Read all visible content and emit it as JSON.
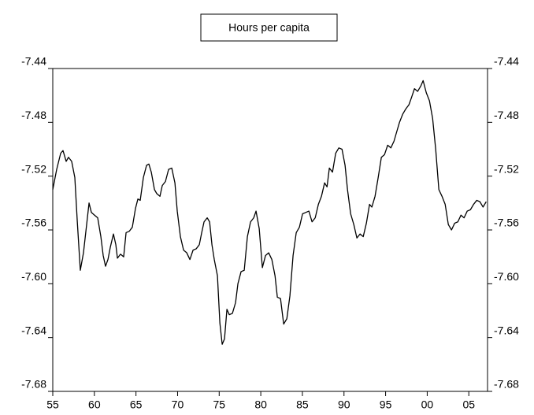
{
  "chart_data": {
    "type": "line",
    "title": "Hours per capita",
    "x": [
      1955.0,
      1955.47,
      1955.95,
      1956.23,
      1956.61,
      1956.89,
      1957.27,
      1957.65,
      1957.94,
      1958.31,
      1958.69,
      1959.07,
      1959.36,
      1959.64,
      1960.02,
      1960.4,
      1960.78,
      1961.06,
      1961.34,
      1961.63,
      1961.91,
      1962.29,
      1962.58,
      1962.77,
      1963.14,
      1963.52,
      1963.81,
      1964.19,
      1964.56,
      1964.94,
      1965.23,
      1965.51,
      1965.89,
      1966.27,
      1966.55,
      1966.84,
      1967.22,
      1967.5,
      1967.88,
      1968.16,
      1968.54,
      1968.92,
      1969.3,
      1969.68,
      1969.96,
      1970.34,
      1970.72,
      1971.1,
      1971.48,
      1971.86,
      1972.24,
      1972.61,
      1972.9,
      1973.18,
      1973.56,
      1973.85,
      1974.13,
      1974.41,
      1974.79,
      1975.08,
      1975.36,
      1975.64,
      1975.93,
      1976.21,
      1976.59,
      1976.97,
      1977.25,
      1977.63,
      1978.01,
      1978.39,
      1978.77,
      1979.15,
      1979.43,
      1979.81,
      1980.19,
      1980.57,
      1980.95,
      1981.33,
      1981.71,
      1981.99,
      1982.37,
      1982.75,
      1983.13,
      1983.5,
      1983.88,
      1984.26,
      1984.64,
      1985.02,
      1985.4,
      1985.78,
      1986.16,
      1986.54,
      1986.92,
      1987.29,
      1987.67,
      1987.96,
      1988.24,
      1988.62,
      1989.0,
      1989.38,
      1989.76,
      1990.13,
      1990.42,
      1990.8,
      1991.18,
      1991.55,
      1991.93,
      1992.31,
      1992.69,
      1993.07,
      1993.35,
      1993.73,
      1994.11,
      1994.49,
      1994.87,
      1995.25,
      1995.63,
      1996.01,
      1996.29,
      1996.67,
      1997.05,
      1997.43,
      1997.8,
      1998.09,
      1998.47,
      1998.85,
      1999.23,
      1999.51,
      1999.89,
      2000.27,
      2000.65,
      2001.02,
      2001.4,
      2001.78,
      2002.16,
      2002.54,
      2002.92,
      2003.3,
      2003.68,
      2004.06,
      2004.43,
      2004.81,
      2005.19,
      2005.57,
      2005.95,
      2006.33,
      2006.71,
      2007.09
    ],
    "series": [
      {
        "name": "Hours per capita",
        "color": "#000000",
        "values": [
          -7.53,
          -7.515,
          -7.503,
          -7.501,
          -7.509,
          -7.506,
          -7.509,
          -7.521,
          -7.553,
          -7.59,
          -7.577,
          -7.556,
          -7.54,
          -7.547,
          -7.549,
          -7.551,
          -7.565,
          -7.579,
          -7.587,
          -7.582,
          -7.573,
          -7.563,
          -7.571,
          -7.581,
          -7.578,
          -7.58,
          -7.562,
          -7.561,
          -7.558,
          -7.544,
          -7.537,
          -7.538,
          -7.521,
          -7.512,
          -7.511,
          -7.517,
          -7.53,
          -7.533,
          -7.535,
          -7.527,
          -7.524,
          -7.515,
          -7.514,
          -7.525,
          -7.546,
          -7.565,
          -7.575,
          -7.577,
          -7.582,
          -7.575,
          -7.574,
          -7.571,
          -7.562,
          -7.554,
          -7.551,
          -7.554,
          -7.571,
          -7.582,
          -7.594,
          -7.629,
          -7.645,
          -7.641,
          -7.619,
          -7.623,
          -7.622,
          -7.614,
          -7.6,
          -7.591,
          -7.59,
          -7.565,
          -7.554,
          -7.551,
          -7.546,
          -7.559,
          -7.588,
          -7.579,
          -7.577,
          -7.582,
          -7.594,
          -7.61,
          -7.611,
          -7.63,
          -7.626,
          -7.609,
          -7.579,
          -7.562,
          -7.558,
          -7.548,
          -7.547,
          -7.546,
          -7.554,
          -7.551,
          -7.541,
          -7.535,
          -7.525,
          -7.528,
          -7.514,
          -7.517,
          -7.503,
          -7.499,
          -7.5,
          -7.512,
          -7.53,
          -7.548,
          -7.556,
          -7.566,
          -7.563,
          -7.565,
          -7.555,
          -7.541,
          -7.543,
          -7.535,
          -7.521,
          -7.506,
          -7.504,
          -7.497,
          -7.499,
          -7.494,
          -7.488,
          -7.48,
          -7.474,
          -7.47,
          -7.467,
          -7.462,
          -7.455,
          -7.457,
          -7.453,
          -7.449,
          -7.458,
          -7.464,
          -7.477,
          -7.5,
          -7.53,
          -7.535,
          -7.541,
          -7.556,
          -7.56,
          -7.555,
          -7.554,
          -7.549,
          -7.551,
          -7.546,
          -7.545,
          -7.541,
          -7.538,
          -7.539,
          -7.543,
          -7.539
        ]
      }
    ],
    "xlim": [
      1955,
      2007.25
    ],
    "xticks": [
      {
        "value": 1955,
        "label": "55"
      },
      {
        "value": 1960,
        "label": "60"
      },
      {
        "value": 1965,
        "label": "65"
      },
      {
        "value": 1970,
        "label": "70"
      },
      {
        "value": 1975,
        "label": "75"
      },
      {
        "value": 1980,
        "label": "80"
      },
      {
        "value": 1985,
        "label": "85"
      },
      {
        "value": 1990,
        "label": "90"
      },
      {
        "value": 1995,
        "label": "95"
      },
      {
        "value": 2000,
        "label": "00"
      },
      {
        "value": 2005,
        "label": "05"
      }
    ],
    "ylim": [
      -7.68,
      -7.44
    ],
    "yticks": [
      -7.68,
      -7.64,
      {
        "value": -7.6,
        "label": "-7.60"
      },
      -7.56,
      -7.52,
      -7.48,
      -7.44
    ]
  }
}
